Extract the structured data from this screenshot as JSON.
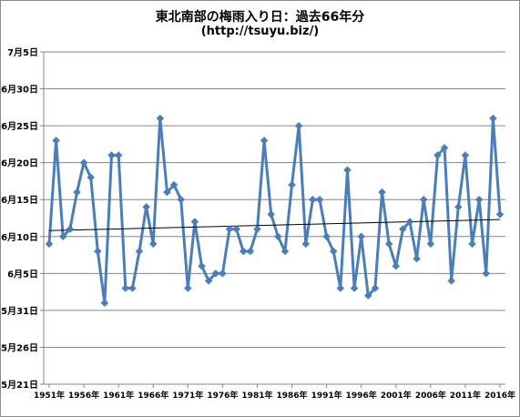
{
  "chart_data": {
    "type": "line",
    "title": "東北南部の梅雨入り日：過去66年分",
    "subtitle": "(http://tsuyu.biz/)",
    "xlabel": "",
    "ylabel": "",
    "x_years": [
      1951,
      1952,
      1953,
      1954,
      1955,
      1956,
      1957,
      1958,
      1959,
      1960,
      1961,
      1962,
      1963,
      1964,
      1965,
      1966,
      1967,
      1968,
      1969,
      1970,
      1971,
      1972,
      1973,
      1974,
      1975,
      1976,
      1977,
      1978,
      1979,
      1980,
      1981,
      1982,
      1983,
      1984,
      1985,
      1986,
      1987,
      1988,
      1989,
      1990,
      1991,
      1992,
      1993,
      1994,
      1995,
      1996,
      1997,
      1998,
      1999,
      2000,
      2001,
      2002,
      2003,
      2004,
      2005,
      2006,
      2007,
      2008,
      2009,
      2010,
      2011,
      2012,
      2013,
      2014,
      2015,
      2016
    ],
    "x_tick_labels": [
      "1951年",
      "1956年",
      "1961年",
      "1966年",
      "1971年",
      "1976年",
      "1981年",
      "1986年",
      "1991年",
      "1996年",
      "2001年",
      "2006年",
      "2011年",
      "2016年"
    ],
    "y_tick_labels": [
      "7月5日",
      "6月30日",
      "6月25日",
      "6月20日",
      "6月15日",
      "6月10日",
      "6月5日",
      "5月31日",
      "5月26日",
      "5月21日"
    ],
    "y_unit": "days after May 21",
    "ylim": [
      0,
      45
    ],
    "series": [
      {
        "values": [
          19,
          33,
          20,
          21,
          26,
          30,
          28,
          18,
          11,
          31,
          31,
          13,
          13,
          18,
          24,
          19,
          36,
          26,
          27,
          25,
          13,
          22,
          16,
          14,
          15,
          15,
          21,
          21,
          18,
          18,
          21,
          33,
          23,
          20,
          18,
          27,
          35,
          19,
          25,
          25,
          20,
          18,
          13,
          29,
          13,
          20,
          12,
          13,
          26,
          19,
          16,
          21,
          22,
          17,
          25,
          19,
          31,
          32,
          14,
          24,
          31,
          19,
          25,
          15,
          36,
          23
        ]
      }
    ],
    "trendline": {
      "start": 20.8,
      "end": 22.3
    },
    "colors": {
      "line": "#4a7ebb",
      "marker": "#4a7ebb",
      "trend": "#000000",
      "grid": "#868686",
      "axis": "#868686"
    }
  }
}
